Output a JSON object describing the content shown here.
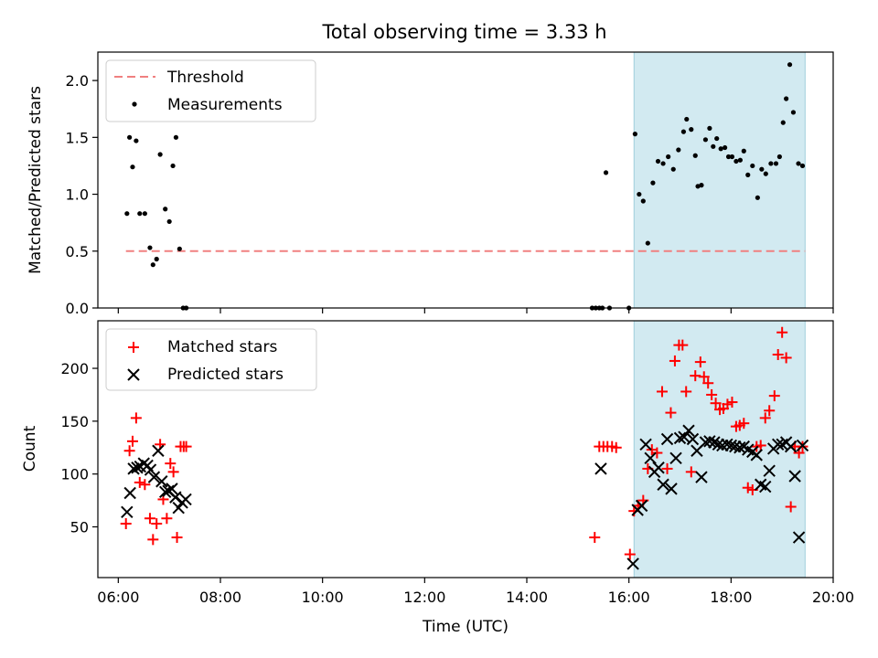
{
  "chart_data": [
    {
      "type": "scatter",
      "title": "Total observing time = 3.33 h",
      "ylabel": "Matched/Predicted stars",
      "xlim_hours": [
        5.6,
        20.0
      ],
      "ylim": [
        0,
        2.25
      ],
      "yticks": [
        0.0,
        0.5,
        1.0,
        1.5,
        2.0
      ],
      "ytick_labels": [
        "0.0",
        "0.5",
        "1.0",
        "1.5",
        "2.0"
      ],
      "shaded_span_hours": [
        16.1,
        19.45
      ],
      "shaded_color": "#add8e6",
      "threshold": {
        "name": "Threshold",
        "value": 0.5,
        "x_hours": [
          6.15,
          19.45
        ],
        "color": "#f08080"
      },
      "legend": {
        "placement": "upper-left",
        "entries": [
          "Threshold",
          "Measurements"
        ]
      },
      "series": [
        {
          "name": "Measurements",
          "marker": "dot",
          "color": "#000000",
          "x_hours": [
            6.17,
            6.22,
            6.28,
            6.35,
            6.42,
            6.52,
            6.62,
            6.68,
            6.75,
            6.82,
            6.92,
            7.0,
            7.07,
            7.13,
            7.2,
            7.27,
            7.33,
            15.28,
            15.35,
            15.42,
            15.48,
            15.55,
            15.62,
            16.0,
            16.12,
            16.2,
            16.28,
            16.37,
            16.47,
            16.57,
            16.67,
            16.77,
            16.87,
            16.97,
            17.07,
            17.13,
            17.22,
            17.3,
            17.35,
            17.42,
            17.5,
            17.58,
            17.65,
            17.72,
            17.8,
            17.88,
            17.95,
            18.02,
            18.1,
            18.18,
            18.25,
            18.33,
            18.42,
            18.52,
            18.6,
            18.68,
            18.78,
            18.88,
            18.95,
            19.02,
            19.08,
            19.15,
            19.22,
            19.32,
            19.4
          ],
          "y": [
            0.83,
            1.5,
            1.24,
            1.47,
            0.83,
            0.83,
            0.53,
            0.38,
            0.43,
            1.35,
            0.87,
            0.76,
            1.25,
            1.5,
            0.52,
            0.0,
            0.0,
            0.0,
            0.0,
            0.0,
            0.0,
            1.19,
            0.0,
            0.0,
            1.53,
            1.0,
            0.94,
            0.57,
            1.1,
            1.29,
            1.27,
            1.33,
            1.22,
            1.39,
            1.55,
            1.66,
            1.57,
            1.34,
            1.07,
            1.08,
            1.48,
            1.58,
            1.42,
            1.49,
            1.4,
            1.41,
            1.33,
            1.33,
            1.29,
            1.3,
            1.38,
            1.17,
            1.25,
            0.97,
            1.22,
            1.18,
            1.27,
            1.27,
            1.33,
            1.63,
            1.84,
            2.14,
            1.72,
            1.27,
            1.25
          ]
        }
      ]
    },
    {
      "type": "scatter",
      "xlabel": "Time (UTC)",
      "ylabel": "Count",
      "xlim_hours": [
        5.6,
        20.0
      ],
      "xticks_hours": [
        6,
        8,
        10,
        12,
        14,
        16,
        18,
        20
      ],
      "xtick_labels": [
        "06:00",
        "08:00",
        "10:00",
        "12:00",
        "14:00",
        "16:00",
        "18:00",
        "20:00"
      ],
      "ylim": [
        2,
        245
      ],
      "yticks": [
        50,
        100,
        150,
        200
      ],
      "ytick_labels": [
        "50",
        "100",
        "150",
        "200"
      ],
      "shaded_span_hours": [
        16.1,
        19.45
      ],
      "shaded_color": "#add8e6",
      "legend": {
        "placement": "upper-left",
        "entries": [
          "Matched stars",
          "Predicted stars"
        ]
      },
      "series": [
        {
          "name": "Matched stars",
          "marker": "plus",
          "color": "#ff0000",
          "x_hours": [
            6.15,
            6.22,
            6.28,
            6.35,
            6.42,
            6.52,
            6.62,
            6.68,
            6.75,
            6.82,
            6.88,
            6.95,
            7.02,
            7.08,
            7.15,
            7.22,
            7.28,
            7.33,
            15.33,
            15.42,
            15.5,
            15.58,
            15.67,
            15.75,
            16.02,
            16.1,
            16.18,
            16.28,
            16.37,
            16.45,
            16.55,
            16.65,
            16.75,
            16.82,
            16.9,
            16.98,
            17.05,
            17.12,
            17.22,
            17.3,
            17.4,
            17.47,
            17.55,
            17.62,
            17.7,
            17.78,
            17.85,
            17.93,
            18.02,
            18.1,
            18.17,
            18.25,
            18.33,
            18.42,
            18.5,
            18.58,
            18.67,
            18.75,
            18.85,
            18.92,
            19.0,
            19.08,
            19.17,
            19.25,
            19.33,
            19.4
          ],
          "y": [
            53,
            122,
            131,
            153,
            92,
            90,
            58,
            38,
            53,
            128,
            76,
            58,
            110,
            102,
            40,
            126,
            126,
            126,
            40,
            126,
            126,
            126,
            126,
            125,
            24,
            65,
            70,
            75,
            105,
            123,
            120,
            178,
            105,
            158,
            207,
            222,
            222,
            178,
            102,
            193,
            206,
            192,
            186,
            175,
            167,
            161,
            162,
            166,
            168,
            145,
            146,
            148,
            87,
            85,
            126,
            127,
            153,
            160,
            174,
            213,
            234,
            210,
            69,
            126,
            120,
            126
          ],
          "note_last_points_duplicate": false
        },
        {
          "name": "Predicted stars",
          "marker": "x",
          "color": "#000000",
          "x_hours": [
            6.17,
            6.23,
            6.3,
            6.37,
            6.43,
            6.5,
            6.57,
            6.63,
            6.7,
            6.78,
            6.85,
            6.92,
            6.98,
            7.05,
            7.12,
            7.18,
            7.25,
            7.32,
            15.45,
            16.08,
            16.17,
            16.25,
            16.33,
            16.42,
            16.5,
            16.58,
            16.67,
            16.75,
            16.83,
            16.92,
            17.0,
            17.08,
            17.17,
            17.25,
            17.33,
            17.42,
            17.5,
            17.58,
            17.67,
            17.75,
            17.83,
            17.92,
            18.0,
            18.08,
            18.17,
            18.25,
            18.33,
            18.42,
            18.5,
            18.58,
            18.67,
            18.75,
            18.83,
            18.92,
            19.0,
            19.08,
            19.17,
            19.25,
            19.33,
            19.4
          ],
          "y": [
            64,
            82,
            105,
            106,
            107,
            110,
            108,
            104,
            97,
            122,
            93,
            83,
            84,
            86,
            78,
            68,
            73,
            76,
            105,
            15,
            66,
            70,
            128,
            115,
            102,
            106,
            90,
            133,
            86,
            115,
            134,
            135,
            141,
            133,
            122,
            97,
            130,
            131,
            130,
            128,
            127,
            128,
            127,
            126,
            125,
            126,
            123,
            121,
            118,
            90,
            88,
            103,
            124,
            128,
            128,
            130,
            126,
            98,
            40,
            127
          ]
        }
      ]
    }
  ]
}
